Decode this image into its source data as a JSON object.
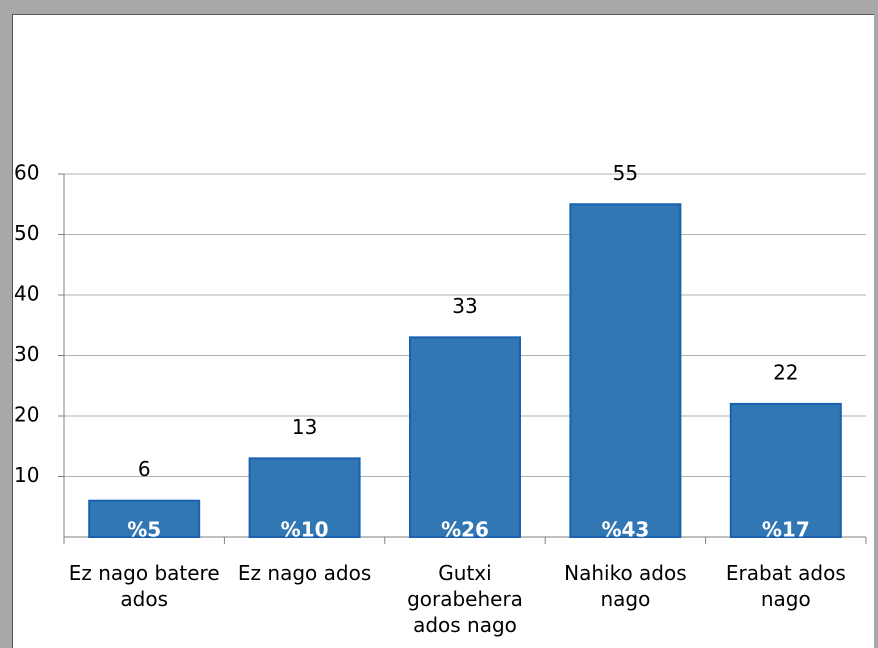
{
  "chart_data": {
    "type": "bar",
    "categories": [
      "Ez nago batere ados",
      "Ez nago ados",
      "Gutxi gorabehera ados nago",
      "Nahiko ados nago",
      "Erabat ados nago"
    ],
    "values": [
      6,
      13,
      33,
      55,
      22
    ],
    "percent_labels": [
      "%5",
      "%10",
      "%26",
      "%43",
      "%17"
    ],
    "color": "#3077b4",
    "ylim": [
      0,
      60
    ],
    "yticks": [
      10,
      20,
      30,
      40,
      50,
      60
    ],
    "grid": true
  }
}
